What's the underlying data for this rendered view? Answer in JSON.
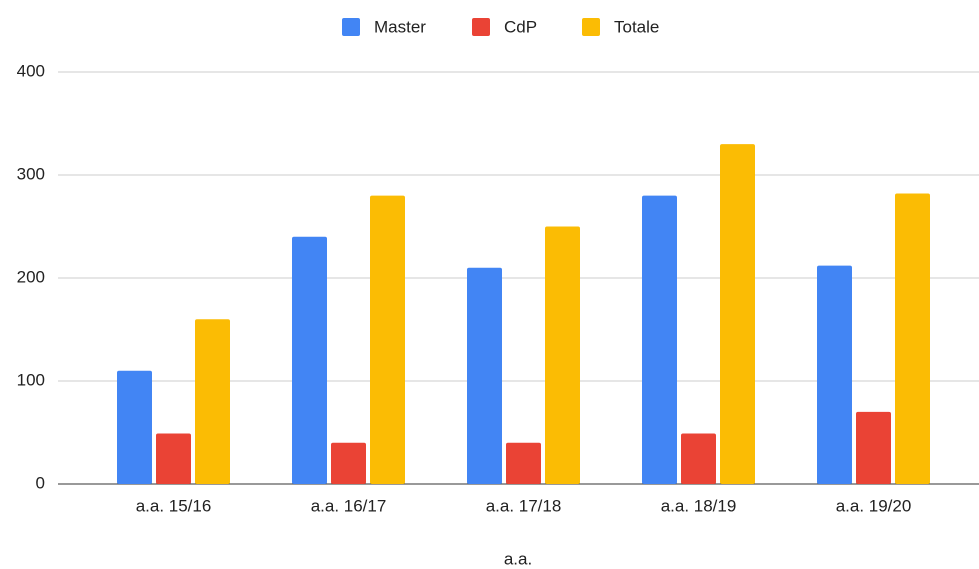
{
  "chart_data": {
    "type": "bar",
    "categories": [
      "a.a. 15/16",
      "a.a. 16/17",
      "a.a. 17/18",
      "a.a. 18/19",
      "a.a. 19/20"
    ],
    "series": [
      {
        "name": "Master",
        "color": "#4285f4",
        "values": [
          110,
          240,
          210,
          280,
          212
        ]
      },
      {
        "name": "CdP",
        "color": "#ea4335",
        "values": [
          49,
          40,
          40,
          49,
          70
        ]
      },
      {
        "name": "Totale",
        "color": "#fbbc04",
        "values": [
          160,
          280,
          250,
          330,
          282
        ]
      }
    ],
    "xlabel": "a.a.",
    "ylim": [
      0,
      400
    ],
    "yticks": [
      0,
      100,
      200,
      300,
      400
    ],
    "grid": true,
    "legend": "top"
  }
}
